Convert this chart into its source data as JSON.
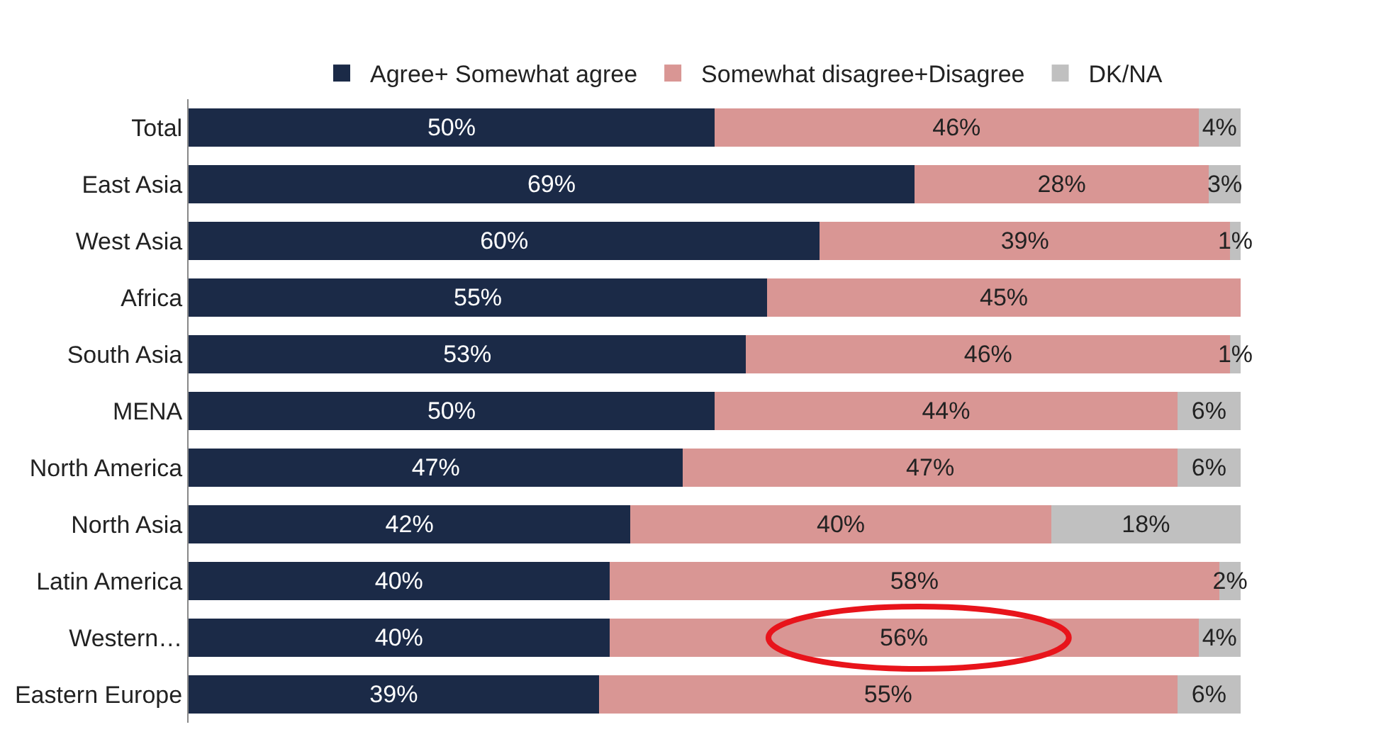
{
  "chart_data": {
    "type": "bar",
    "orientation": "horizontal",
    "stacked": true,
    "legend": "top",
    "tick_labels": "y",
    "categories": [
      "Total",
      "East Asia",
      "West Asia",
      "Africa",
      "South Asia",
      "MENA",
      "North America",
      "North Asia",
      "Latin America",
      "Western…",
      "Eastern Europe"
    ],
    "series": [
      {
        "name": "Agree+ Somewhat agree",
        "color": "#1b2a47",
        "values": [
          50,
          69,
          60,
          55,
          53,
          50,
          47,
          42,
          40,
          40,
          39
        ],
        "value_labels": [
          "50%",
          "69%",
          "60%",
          "55%",
          "53%",
          "50%",
          "47%",
          "42%",
          "40%",
          "40%",
          "39%"
        ]
      },
      {
        "name": "Somewhat disagree+Disagree",
        "color": "#d99694",
        "values": [
          46,
          28,
          39,
          45,
          46,
          44,
          47,
          40,
          58,
          56,
          55
        ],
        "value_labels": [
          "46%",
          "28%",
          "39%",
          "45%",
          "46%",
          "44%",
          "47%",
          "40%",
          "58%",
          "56%",
          "55%"
        ]
      },
      {
        "name": "DK/NA",
        "color": "#c0c0c0",
        "values": [
          4,
          3,
          1,
          null,
          1,
          6,
          6,
          18,
          2,
          4,
          6
        ],
        "value_labels": [
          "4%",
          "3%",
          "1%",
          null,
          "1%",
          "6%",
          "6%",
          "18%",
          "2%",
          "4%",
          "6%"
        ]
      }
    ]
  }
}
